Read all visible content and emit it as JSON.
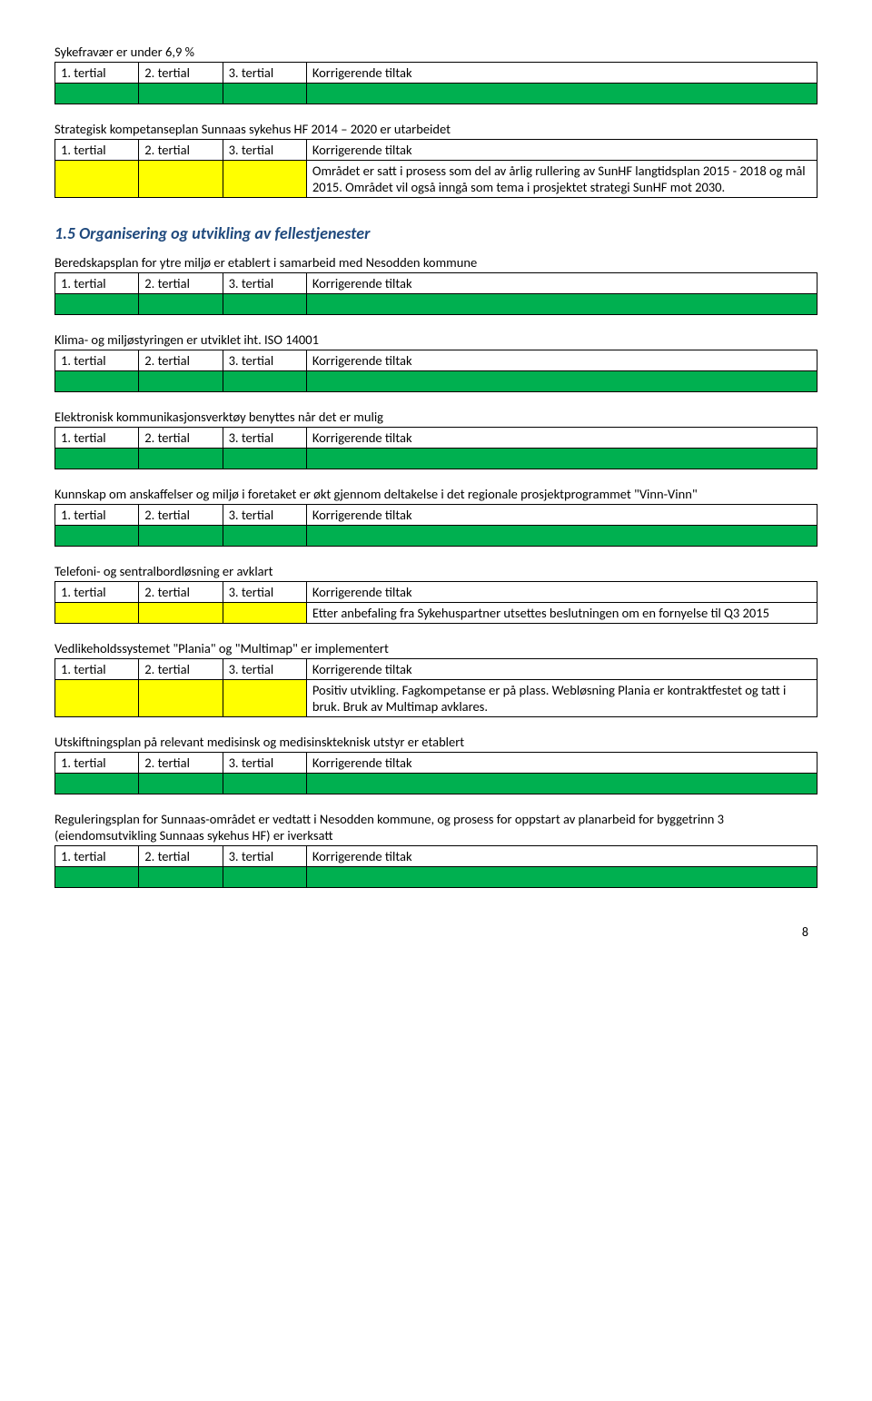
{
  "headers": {
    "t1": "1. tertial",
    "t2": "2. tertial",
    "t3": "3. tertial",
    "korr": "Korrigerende tiltak"
  },
  "sections": [
    {
      "title": "Sykefravær er under 6,9 %",
      "rowType": "green",
      "note": ""
    },
    {
      "title": "Strategisk kompetanseplan Sunnaas sykehus HF 2014 – 2020 er utarbeidet",
      "rowType": "yellow",
      "note": "Området er satt i prosess som del av årlig rullering av SunHF langtidsplan 2015 - 2018 og mål 2015. Området vil også inngå som tema i prosjektet strategi SunHF mot 2030."
    }
  ],
  "heading15": "1.5    Organisering og utvikling av fellestjenester",
  "sections2": [
    {
      "title": "Beredskapsplan for ytre miljø er etablert i samarbeid med Nesodden kommune",
      "rowType": "green",
      "note": ""
    },
    {
      "title": "Klima- og miljøstyringen er utviklet iht. ISO 14001",
      "rowType": "green",
      "note": ""
    },
    {
      "title": "Elektronisk kommunikasjonsverktøy benyttes når det er mulig",
      "rowType": "green",
      "note": ""
    },
    {
      "title": "Kunnskap om anskaffelser og miljø i foretaket er økt gjennom deltakelse i det regionale prosjektprogrammet \"Vinn-Vinn\"",
      "rowType": "green",
      "note": ""
    },
    {
      "title": "Telefoni- og sentralbordløsning er avklart",
      "rowType": "yellow",
      "note": "Etter anbefaling fra Sykehuspartner utsettes beslutningen om en fornyelse til Q3 2015"
    },
    {
      "title": "Vedlikeholdssystemet \"Plania\" og \"Multimap\" er implementert",
      "rowType": "yellow",
      "note": "Positiv utvikling. Fagkompetanse er på plass. Webløsning Plania er kontraktfestet og tatt i bruk. Bruk av Multimap avklares."
    },
    {
      "title": "Utskiftningsplan på relevant medisinsk og medisinskteknisk utstyr er etablert",
      "rowType": "green",
      "note": ""
    },
    {
      "title": "Reguleringsplan for Sunnaas-området er vedtatt i Nesodden kommune, og prosess for oppstart av planarbeid for byggetrinn 3 (eiendomsutvikling Sunnaas sykehus HF) er iverksatt",
      "rowType": "green",
      "note": ""
    }
  ],
  "pageNumber": "8",
  "colors": {
    "green": "#00b050",
    "yellow": "#ffff00",
    "headingBlue": "#1f497d"
  }
}
